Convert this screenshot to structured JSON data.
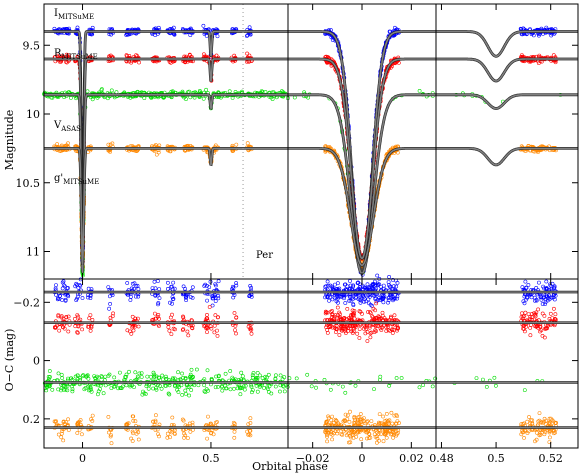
{
  "chart_data": {
    "type": "scatter",
    "xlabel": "Orbital phase",
    "ylabel_top": "Magnitude",
    "ylabel_bottom": "O−C (mag)",
    "annotation": "Per",
    "annotation_phase": 0.625,
    "colors": {
      "I": "#0000ff",
      "R": "#ff0000",
      "V": "#00dd00",
      "g": "#ff8800",
      "model": "#808080"
    },
    "band_labels": [
      {
        "key": "I",
        "main": "I",
        "sub": "MITSuME"
      },
      {
        "key": "R",
        "main": "R",
        "sub": "MITSuME"
      },
      {
        "key": "V",
        "main": "V",
        "sub": "ASAS"
      },
      {
        "key": "g",
        "main": "g'",
        "sub": "MITSuME"
      }
    ],
    "panels_x": [
      {
        "xlim": [
          -0.15,
          0.8
        ],
        "ticks": [
          0,
          0.5
        ],
        "tick_labels": [
          "0",
          "0.5"
        ]
      },
      {
        "xlim": [
          -0.03,
          0.03
        ],
        "ticks": [
          -0.02,
          0,
          0.02
        ],
        "tick_labels": [
          "−0.02",
          "0",
          "0.02"
        ]
      },
      {
        "xlim": [
          0.478,
          0.53
        ],
        "ticks": [
          0.48,
          0.5,
          0.52
        ],
        "tick_labels": [
          "0.48",
          "0.5",
          "0.52"
        ]
      }
    ],
    "magnitude": {
      "ylim": [
        9.2,
        11.2
      ],
      "ticks": [
        9.5,
        10,
        10.5,
        11
      ],
      "tick_labels": [
        "9.5",
        "10",
        "10.5",
        "11"
      ]
    },
    "o_c": {
      "ylim": [
        -0.28,
        0.3
      ],
      "ticks": [
        -0.2,
        0,
        0.2
      ],
      "tick_labels": [
        "−0.2",
        "0",
        "0.2"
      ]
    },
    "series": [
      {
        "name": "I",
        "baseline": 9.4,
        "primary_depth": 1.75,
        "primary_width": 0.004,
        "secondary_depth": 0.18,
        "secondary_width": 0.003,
        "oc_offset": -0.235
      },
      {
        "name": "R",
        "baseline": 9.6,
        "primary_depth": 1.45,
        "primary_width": 0.0042,
        "secondary_depth": 0.16,
        "secondary_width": 0.003,
        "oc_offset": -0.13
      },
      {
        "name": "V",
        "baseline": 9.86,
        "primary_depth": 1.3,
        "primary_width": 0.0045,
        "secondary_depth": 0.1,
        "secondary_width": 0.003,
        "oc_offset": 0.075
      },
      {
        "name": "g",
        "baseline": 10.25,
        "primary_depth": 0.85,
        "primary_width": 0.0045,
        "secondary_depth": 0.12,
        "secondary_width": 0.003,
        "oc_offset": 0.23
      }
    ],
    "observed_phase_segments": [
      [
        -0.11,
        -0.05
      ],
      [
        -0.03,
        0.0
      ],
      [
        0.02,
        0.04
      ],
      [
        0.1,
        0.12
      ],
      [
        0.17,
        0.22
      ],
      [
        0.27,
        0.3
      ],
      [
        0.33,
        0.36
      ],
      [
        0.39,
        0.43
      ],
      [
        0.47,
        0.53
      ],
      [
        0.58,
        0.6
      ],
      [
        0.64,
        0.66
      ]
    ]
  }
}
